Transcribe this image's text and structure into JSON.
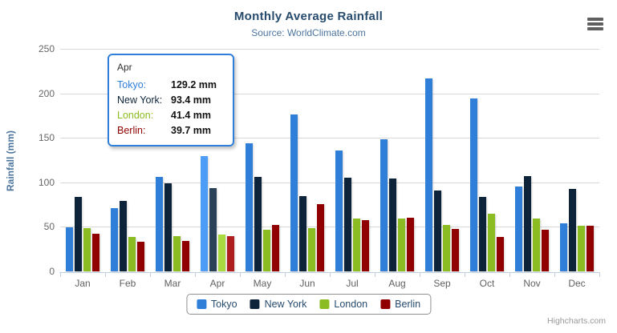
{
  "chart": {
    "title": "Monthly Average Rainfall",
    "subtitle": "Source: WorldClimate.com",
    "credits": "Highcharts.com"
  },
  "chart_data": {
    "type": "bar",
    "title": "Monthly Average Rainfall",
    "subtitle": "Source: WorldClimate.com",
    "categories": [
      "Jan",
      "Feb",
      "Mar",
      "Apr",
      "May",
      "Jun",
      "Jul",
      "Aug",
      "Sep",
      "Oct",
      "Nov",
      "Dec"
    ],
    "series": [
      {
        "name": "Tokyo",
        "color": "#2f7ed8",
        "values": [
          49.9,
          71.5,
          106.4,
          129.2,
          144.0,
          176.0,
          135.6,
          148.5,
          216.4,
          194.1,
          95.6,
          54.4
        ]
      },
      {
        "name": "New York",
        "color": "#0d233a",
        "values": [
          83.6,
          78.8,
          98.5,
          93.4,
          106.0,
          84.5,
          105.0,
          104.3,
          91.2,
          83.5,
          106.6,
          92.3
        ]
      },
      {
        "name": "London",
        "color": "#8bbc21",
        "values": [
          48.9,
          38.8,
          39.3,
          41.4,
          47.0,
          48.3,
          59.0,
          59.6,
          52.4,
          65.2,
          59.3,
          51.2
        ]
      },
      {
        "name": "Berlin",
        "color": "#910000",
        "values": [
          42.4,
          33.2,
          34.5,
          39.7,
          52.6,
          75.5,
          57.4,
          60.4,
          47.6,
          39.1,
          46.8,
          51.1
        ]
      }
    ],
    "xlabel": "",
    "ylabel": "Rainfall (mm)",
    "ylim": [
      0,
      250
    ],
    "yticks": [
      0,
      50,
      100,
      150,
      200,
      250
    ],
    "grid": true,
    "legend_position": "bottom",
    "hovered_category": "Apr"
  },
  "tooltip": {
    "header": "Apr",
    "border_color": "#2f7ed8",
    "rows": [
      {
        "label": "Tokyo:",
        "value": "129.2 mm",
        "color": "#2f7ed8"
      },
      {
        "label": "New York:",
        "value": "93.4 mm",
        "color": "#0d233a"
      },
      {
        "label": "London:",
        "value": "41.4 mm",
        "color": "#8bbc21"
      },
      {
        "label": "Berlin:",
        "value": "39.7 mm",
        "color": "#910000"
      }
    ]
  },
  "icons": {
    "export_menu": "hamburger-icon"
  }
}
